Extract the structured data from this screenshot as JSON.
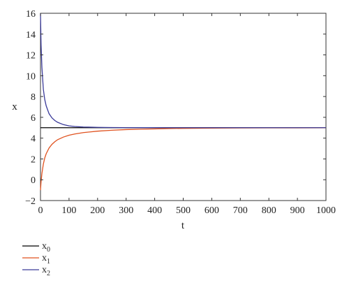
{
  "chart_data": {
    "type": "line",
    "title": "",
    "xlabel": "t",
    "ylabel": "x",
    "xlim": [
      0,
      1000
    ],
    "ylim": [
      -2,
      16
    ],
    "xticks": [
      0,
      100,
      200,
      300,
      400,
      500,
      600,
      700,
      800,
      900,
      1000
    ],
    "yticks": [
      -2,
      0,
      2,
      4,
      6,
      8,
      10,
      12,
      14,
      16
    ],
    "ytick_labels": [
      "−2",
      "0",
      "2",
      "4",
      "6",
      "8",
      "10",
      "12",
      "14",
      "16"
    ],
    "grid": false,
    "legend_position": "below-left",
    "series": [
      {
        "name": "x",
        "subscript": "0",
        "color": "#000000",
        "x": [
          0,
          1000
        ],
        "y": [
          5,
          5
        ]
      },
      {
        "name": "x",
        "subscript": "1",
        "color": "#e0521f",
        "x": [
          0,
          2,
          5,
          10,
          15,
          20,
          30,
          40,
          50,
          60,
          80,
          100,
          120,
          150,
          200,
          250,
          300,
          350,
          400,
          450,
          500,
          600,
          700,
          800,
          900,
          1000
        ],
        "y": [
          -1.0,
          -0.2,
          0.6,
          1.5,
          2.1,
          2.5,
          3.05,
          3.4,
          3.65,
          3.85,
          4.1,
          4.28,
          4.4,
          4.53,
          4.67,
          4.76,
          4.82,
          4.86,
          4.89,
          4.92,
          4.94,
          4.96,
          4.975,
          4.985,
          4.99,
          4.995
        ]
      },
      {
        "name": "x",
        "subscript": "2",
        "color": "#3a3a99",
        "x": [
          0,
          2,
          5,
          10,
          15,
          20,
          30,
          40,
          50,
          60,
          80,
          100,
          120,
          150,
          200,
          250,
          300,
          400,
          500,
          600,
          700,
          800,
          900,
          1000
        ],
        "y": [
          16.0,
          13.0,
          10.8,
          8.7,
          7.7,
          7.1,
          6.35,
          5.95,
          5.7,
          5.52,
          5.3,
          5.18,
          5.12,
          5.07,
          5.035,
          5.02,
          5.012,
          5.006,
          5.003,
          5.002,
          5.001,
          5.0005,
          5.0003,
          5.0001
        ]
      }
    ]
  }
}
